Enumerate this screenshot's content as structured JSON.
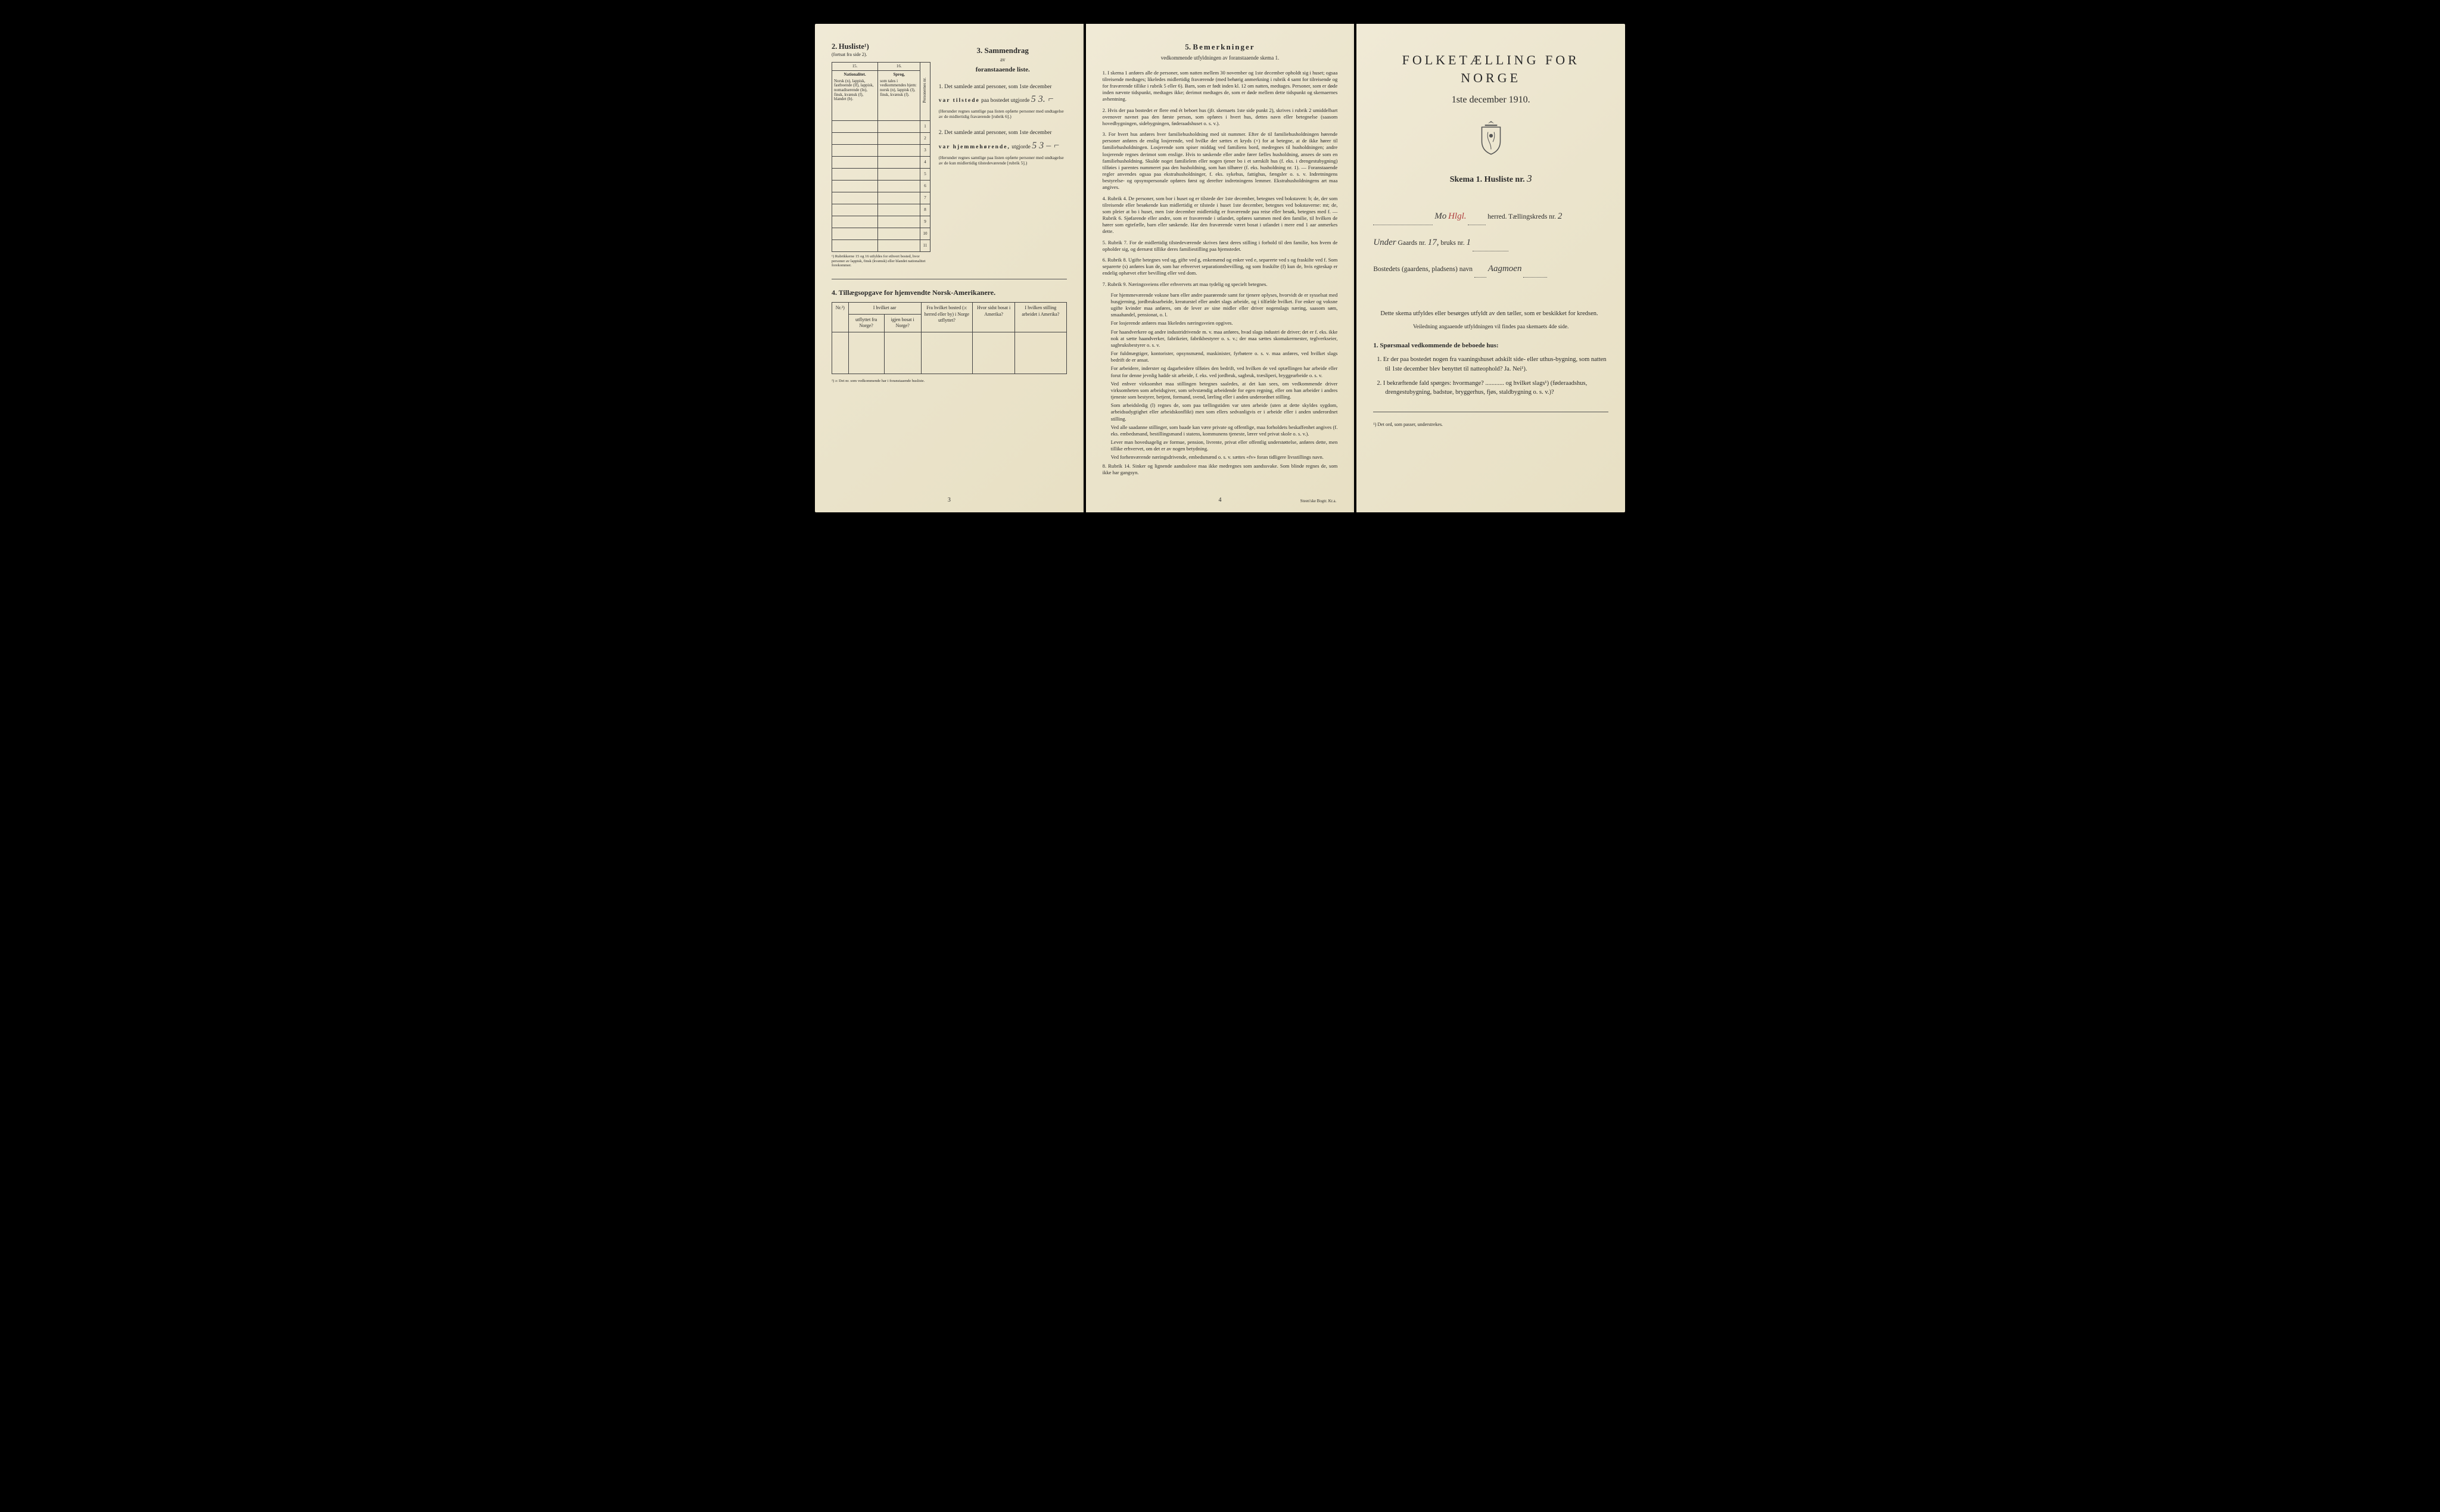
{
  "left": {
    "husliste": {
      "heading_num": "2.",
      "heading": "Husliste¹)",
      "sub": "(fortsat fra side 2).",
      "col15": "15.",
      "col16": "16.",
      "col15_label": "Nationalitet.",
      "col15_detail": "Norsk (n), lappisk, fastboende (lf), lappisk, nomadiserende (ln), finsk, kvænsk (f), blandet (b).",
      "col16_label": "Sprog,",
      "col16_detail": "som tales i vedkommendes hjem: norsk (n), lappisk (l), finsk, kvænsk (f).",
      "col_rownum": "Personernes nr.",
      "row_numbers": [
        "1",
        "2",
        "3",
        "4",
        "5",
        "6",
        "7",
        "8",
        "9",
        "10",
        "11"
      ],
      "footnote": "¹) Rubrikkerne 15 og 16 utfyldes for ethvert bosted, hvor personer av lappisk, finsk (kvænsk) eller blandet nationalitet forekommer."
    },
    "sammendrag": {
      "num": "3.",
      "title": "Sammendrag",
      "sub1": "av",
      "sub2": "foranstaaende liste.",
      "item1_pre": "1. Det samlede antal personer, som 1ste december",
      "item1_bold": "var tilstede",
      "item1_post": " paa bostedet utgjorde",
      "item1_value": "5 3. ⌐",
      "item1_note": "(Herunder regnes samtlige paa listen opførte personer med undtagelse av de midlertidig fraværende [rubrik 6].)",
      "item2_pre": "2. Det samlede antal personer, som 1ste december",
      "item2_bold": "var hjemmehørende,",
      "item2_post": " utgjorde",
      "item2_value": "5 3 – ⌐",
      "item2_note": "(Herunder regnes samtlige paa listen opførte personer med undtagelse av de kun midlertidig tilstedeværende [rubrik 5].)"
    },
    "sect4": {
      "heading": "4.  Tillægsopgave for hjemvendte Norsk-Amerikanere.",
      "cols": {
        "nr": "Nr.²)",
        "c1a": "I hvilket aar",
        "c1b_left": "utflyttet fra Norge?",
        "c1b_right": "igjen bosat i Norge?",
        "c2": "Fra hvilket bosted (ɔ: herred eller by) i Norge utflyttet?",
        "c3": "Hvor sidst bosat i Amerika?",
        "c4": "I hvilken stilling arbeidet i Amerika?"
      },
      "footnote": "²) ɔ: Det nr. som vedkommende har i foranstaaende husliste."
    },
    "page_num": "3"
  },
  "middle": {
    "heading_num": "5.",
    "heading": "Bemerkninger",
    "sub": "vedkommende utfyldningen av foranstaaende skema 1.",
    "items": [
      "1. I skema 1 anføres alle de personer, som natten mellem 30 november og 1ste december opholdt sig i huset; ogsaa tilreisende medtages; likeledes midlertidig fraværende (med behørig anmerkning i rubrik 4 samt for tilreisende og for fraværende tillike i rubrik 5 eller 6). Barn, som er født inden kl. 12 om natten, medtages. Personer, som er døde inden nævnte tidspunkt, medtages ikke; derimot medtages de, som er døde mellem dette tidspunkt og skemaernes avhentning.",
      "2. Hvis der paa bostedet er flere end ét beboet hus (jfr. skemaets 1ste side punkt 2), skrives i rubrik 2 umiddelbart ovenover navnet paa den første person, som opføres i hvert hus, dettes navn eller betegnelse (saasom hovedbygningen, sidebygningen, føderaadshuset o. s. v.).",
      "3. For hvert hus anføres hver familiehusholdning med sit nummer. Efter de til familiehusholdningen hørende personer anføres de enslig losjerende, ved hvilke der sættes et kryds (×) for at betegne, at de ikke hører til familiehusholdningen. Losjerende som spiser middag ved familiens bord, medregnes til husholdningen; andre losjerende regnes derimot som enslige. Hvis to søskende eller andre fører fælles husholdning, ansees de som en familiehusholdning. Skulde noget familielem eller nogen tjener bo i et særskilt hus (f. eks. i drengestubygning) tilføies i parentes nummeret paa den husholdning, som han tilhører (f. eks. husholdning nr. 1). — Foranstaaende regler anvendes ogsaa paa ekstrahusholdninger, f. eks. sykehus, fattighus, fængsler o. s. v. Indretningens bestyrelse- og opsynspersonale opføres først og derefter indretningens lemmer. Ekstrahusholdningens art maa angives.",
      "4. Rubrik 4. De personer, som bor i huset og er tilstede der 1ste december, betegnes ved bokstaven: b; de, der som tilreisende eller besøkende kun midlertidig er tilstede i huset 1ste december, betegnes ved bokstaverne: mt; de, som pleier at bo i huset, men 1ste december midlertidig er fraværende paa reise eller besøk, betegnes med f. — Rubrik 6. Sjøfarende eller andre, som er fraværende i utlandet, opføres sammen med den familie, til hvilken de hører som egtefælle, barn eller søskende. Har den fraværende været bosat i utlandet i mere end 1 aar anmerkes dette.",
      "5. Rubrik 7. For de midlertidig tilstedeværende skrives først deres stilling i forhold til den familie, hos hvem de opholder sig, og dernæst tillike deres familiestilling paa hjemstedet.",
      "6. Rubrik 8. Ugifte betegnes ved ug, gifte ved g, enkemænd og enker ved e, separerte ved s og fraskilte ved f. Som separerte (s) anføres kun de, som har erhvervet separationsbevilling, og som fraskilte (f) kun de, hvis egteskap er endelig ophævet efter bevilling eller ved dom.",
      "7. Rubrik 9. Næringsveiens eller erhvervets art maa tydelig og specielt betegnes.",
      "8. Rubrik 14. Sinker og lignende aandsslove maa ikke medregnes som aandssvake. Som blinde regnes de, som ikke har gangsyn."
    ],
    "item7_paras": [
      "For hjemmeværende voksne barn eller andre paarørende samt for tjenere oplyses, hvorvidt de er sysselsat med husgjerning, jordbruksarbeide, kreaturstel eller andet slags arbeide, og i tilfælde hvilket. For enker og voksne ugifte kvinder maa anføres, om de lever av sine midler eller driver nogenslags næring, saasom søm, smaahandel, pensionat, o. l.",
      "For losjerende anføres maa likeledes næringsveien opgives.",
      "For haandverkere og andre industridrivende m. v. maa anføres, hvad slags industri de driver; det er f. eks. ikke nok at sætte haandverker, fabrikeier, fabrikbestyrer o. s. v.; der maa sættes skomakermester, teglverkseier, sagbruksbestyrer o. s. v.",
      "For fuldmægtiger, kontorister, opsynsmænd, maskinister, fyrbøtere o. s. v. maa anføres, ved hvilket slags bedrift de er ansat.",
      "For arbeidere, inderster og dagarbeidere tilføies den bedrift, ved hvilken de ved optællingen har arbeide eller forut for denne jevnlig hadde sit arbeide, f. eks. ved jordbruk, sagbruk, træsliperi, bryggearbeide o. s. v.",
      "Ved enhver virksomhet maa stillingen betegnes saaledes, at det kan sees, om vedkommende driver virksomheten som arbeidsgiver, som selvstændig arbeidende for egen regning, eller om han arbeider i andres tjeneste som bestyrer, betjent, formand, svend, lærling eller i anden underordnet stilling.",
      "Som arbeidsledig (l) regnes de, som paa tællingstiden var uten arbeide (uten at dette skyldes sygdom, arbeidsudygtighet eller arbeidskonflikt) men som ellers sedvanligvis er i arbeide eller i anden underordnet stilling.",
      "Ved alle saadanne stillinger, som baade kan være private og offentlige, maa forholdets beskaffenhet angives (f. eks. embedsmand, bestillingsmand i statens, kommunens tjeneste, lærer ved privat skole o. s. v.).",
      "Lever man hovedsagelig av formue, pension, livrente, privat eller offentlig understøttelse, anføres dette, men tillike erhvervet, om det er av nogen betydning.",
      "Ved forhenværende næringsdrivende, embedsmænd o. s. v. sættes «fv» foran tidligere livsstillings navn."
    ],
    "page_num": "4",
    "imprint": "Steen'ske Bogtr.  Kr.a."
  },
  "right": {
    "title": "FOLKETÆLLING FOR NORGE",
    "subtitle": "1ste december 1910.",
    "skema_label": "Skema 1.   Husliste nr.",
    "skema_value": "3",
    "line1_pre": "",
    "line1_hw": "Mo",
    "line1_hw2": "Hlgl.",
    "line1_post": "herred.   Tællingskreds nr.",
    "line1_kreds": "2",
    "line2_pre": "Under",
    "line2_gaard_lbl": "Gaards nr.",
    "line2_gaard": "17,",
    "line2_bruk_lbl": "bruks nr.",
    "line2_bruk": "1",
    "line3_label": "Bostedets (gaardens, pladsens) navn",
    "line3_value": "Aagmoen",
    "body1": "Dette skema utfyldes eller besørges utfyldt av den tæller, som er beskikket for kredsen.",
    "body_small": "Veiledning angaaende utfyldningen vil findes paa skemaets 4de side.",
    "q_heading": "1. Spørsmaal vedkommende de beboede hus:",
    "q1": "1. Er der paa bostedet nogen fra vaaningshuset adskilt side- eller uthus-bygning, som natten til 1ste december blev benyttet til natteophold?   Ja.   Nei¹).",
    "q2": "2. I bekræftende fald spørges: hvormange? ............ og hvilket slags¹) (føderaadshus, drengestubygning, badstue, bryggerhus, fjøs, staldbygning o. s. v.)?",
    "footnote": "¹) Det ord, som passer, understrekes."
  }
}
